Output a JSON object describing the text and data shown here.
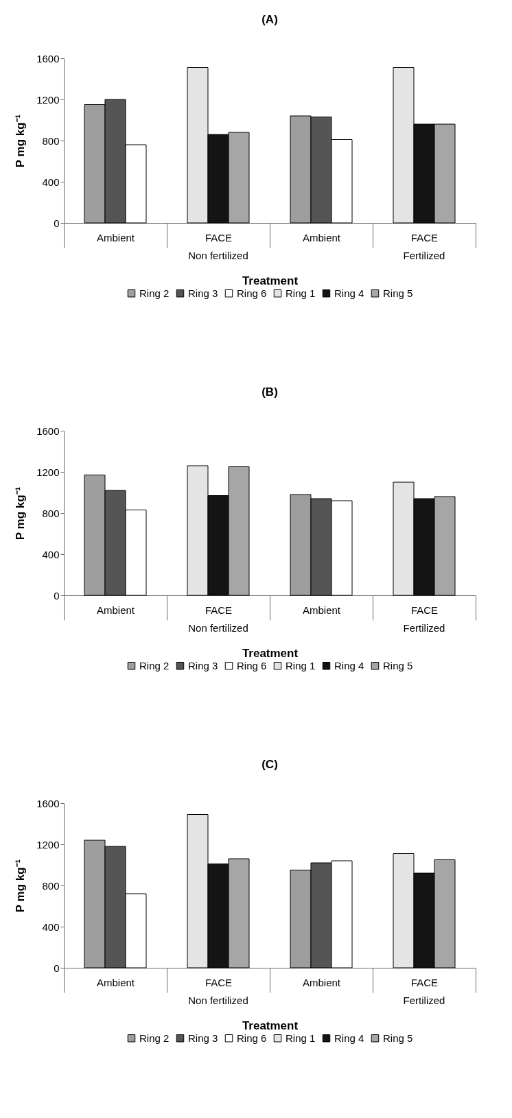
{
  "chart_data": [
    {
      "type": "bar",
      "title": "(A)",
      "xlabel": "Treatment",
      "ylabel": "P mg kg⁻¹",
      "categories": [
        "Ambient",
        "FACE",
        "Ambient",
        "FACE"
      ],
      "annotations": [
        "Non fertilized",
        "Fertilized"
      ],
      "ylim": [
        0,
        1600
      ],
      "yticks": [
        0,
        400,
        800,
        1200,
        1600
      ],
      "legend": "bottom",
      "series": [
        {
          "name": "Ring 2",
          "color": "#9e9e9e",
          "values": [
            1150,
            null,
            1040,
            null
          ]
        },
        {
          "name": "Ring 3",
          "color": "#555555",
          "values": [
            1200,
            null,
            1030,
            null
          ]
        },
        {
          "name": "Ring 6",
          "color": "#ffffff",
          "values": [
            760,
            null,
            810,
            null
          ]
        },
        {
          "name": "Ring 1",
          "color": "#e4e4e4",
          "values": [
            null,
            1510,
            null,
            1510
          ]
        },
        {
          "name": "Ring 4",
          "color": "#141414",
          "values": [
            null,
            860,
            null,
            960
          ]
        },
        {
          "name": "Ring 5",
          "color": "#a6a6a6",
          "values": [
            null,
            880,
            null,
            960
          ]
        }
      ]
    },
    {
      "type": "bar",
      "title": "(B)",
      "xlabel": "Treatment",
      "ylabel": "P mg kg⁻¹",
      "categories": [
        "Ambient",
        "FACE",
        "Ambient",
        "FACE"
      ],
      "annotations": [
        "Non fertilized",
        "Fertilized"
      ],
      "ylim": [
        0,
        1600
      ],
      "yticks": [
        0,
        400,
        800,
        1200,
        1600
      ],
      "legend": "bottom",
      "series": [
        {
          "name": "Ring 2",
          "color": "#9e9e9e",
          "values": [
            1170,
            null,
            980,
            null
          ]
        },
        {
          "name": "Ring 3",
          "color": "#555555",
          "values": [
            1020,
            null,
            940,
            null
          ]
        },
        {
          "name": "Ring 6",
          "color": "#ffffff",
          "values": [
            830,
            null,
            920,
            null
          ]
        },
        {
          "name": "Ring 1",
          "color": "#e4e4e4",
          "values": [
            null,
            1260,
            null,
            1100
          ]
        },
        {
          "name": "Ring 4",
          "color": "#141414",
          "values": [
            null,
            970,
            null,
            940
          ]
        },
        {
          "name": "Ring 5",
          "color": "#a6a6a6",
          "values": [
            null,
            1250,
            null,
            960
          ]
        }
      ]
    },
    {
      "type": "bar",
      "title": "(C)",
      "xlabel": "Treatment",
      "ylabel": "P mg kg⁻¹",
      "categories": [
        "Ambient",
        "FACE",
        "Ambient",
        "FACE"
      ],
      "annotations": [
        "Non fertilized",
        "Fertilized"
      ],
      "ylim": [
        0,
        1600
      ],
      "yticks": [
        0,
        400,
        800,
        1200,
        1600
      ],
      "legend": "bottom",
      "series": [
        {
          "name": "Ring 2",
          "color": "#9e9e9e",
          "values": [
            1240,
            null,
            950,
            null
          ]
        },
        {
          "name": "Ring 3",
          "color": "#555555",
          "values": [
            1180,
            null,
            1020,
            null
          ]
        },
        {
          "name": "Ring 6",
          "color": "#ffffff",
          "values": [
            720,
            null,
            1040,
            null
          ]
        },
        {
          "name": "Ring 1",
          "color": "#e4e4e4",
          "values": [
            null,
            1490,
            null,
            1110
          ]
        },
        {
          "name": "Ring 4",
          "color": "#141414",
          "values": [
            null,
            1010,
            null,
            920
          ]
        },
        {
          "name": "Ring 5",
          "color": "#a6a6a6",
          "values": [
            null,
            1060,
            null,
            1050
          ]
        }
      ]
    }
  ]
}
